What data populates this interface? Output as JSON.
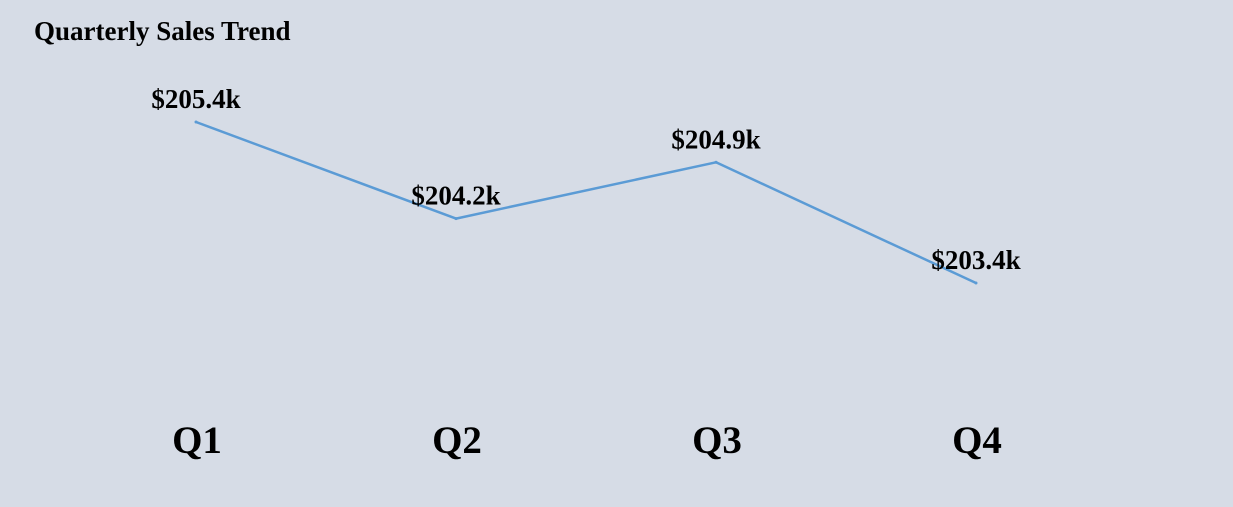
{
  "chart_data": {
    "type": "line",
    "title": "Quarterly Sales Trend",
    "categories": [
      "Q1",
      "Q2",
      "Q3",
      "Q4"
    ],
    "values": [
      205.4,
      204.2,
      204.9,
      203.4
    ],
    "data_labels": [
      "$205.4k",
      "$204.2k",
      "$204.9k",
      "$203.4k"
    ],
    "xlabel": "",
    "ylabel": "",
    "grid": false,
    "legend": "none",
    "colors": {
      "line": "#5b9bd5",
      "background": "#d6dce6",
      "text": "#000000"
    }
  }
}
